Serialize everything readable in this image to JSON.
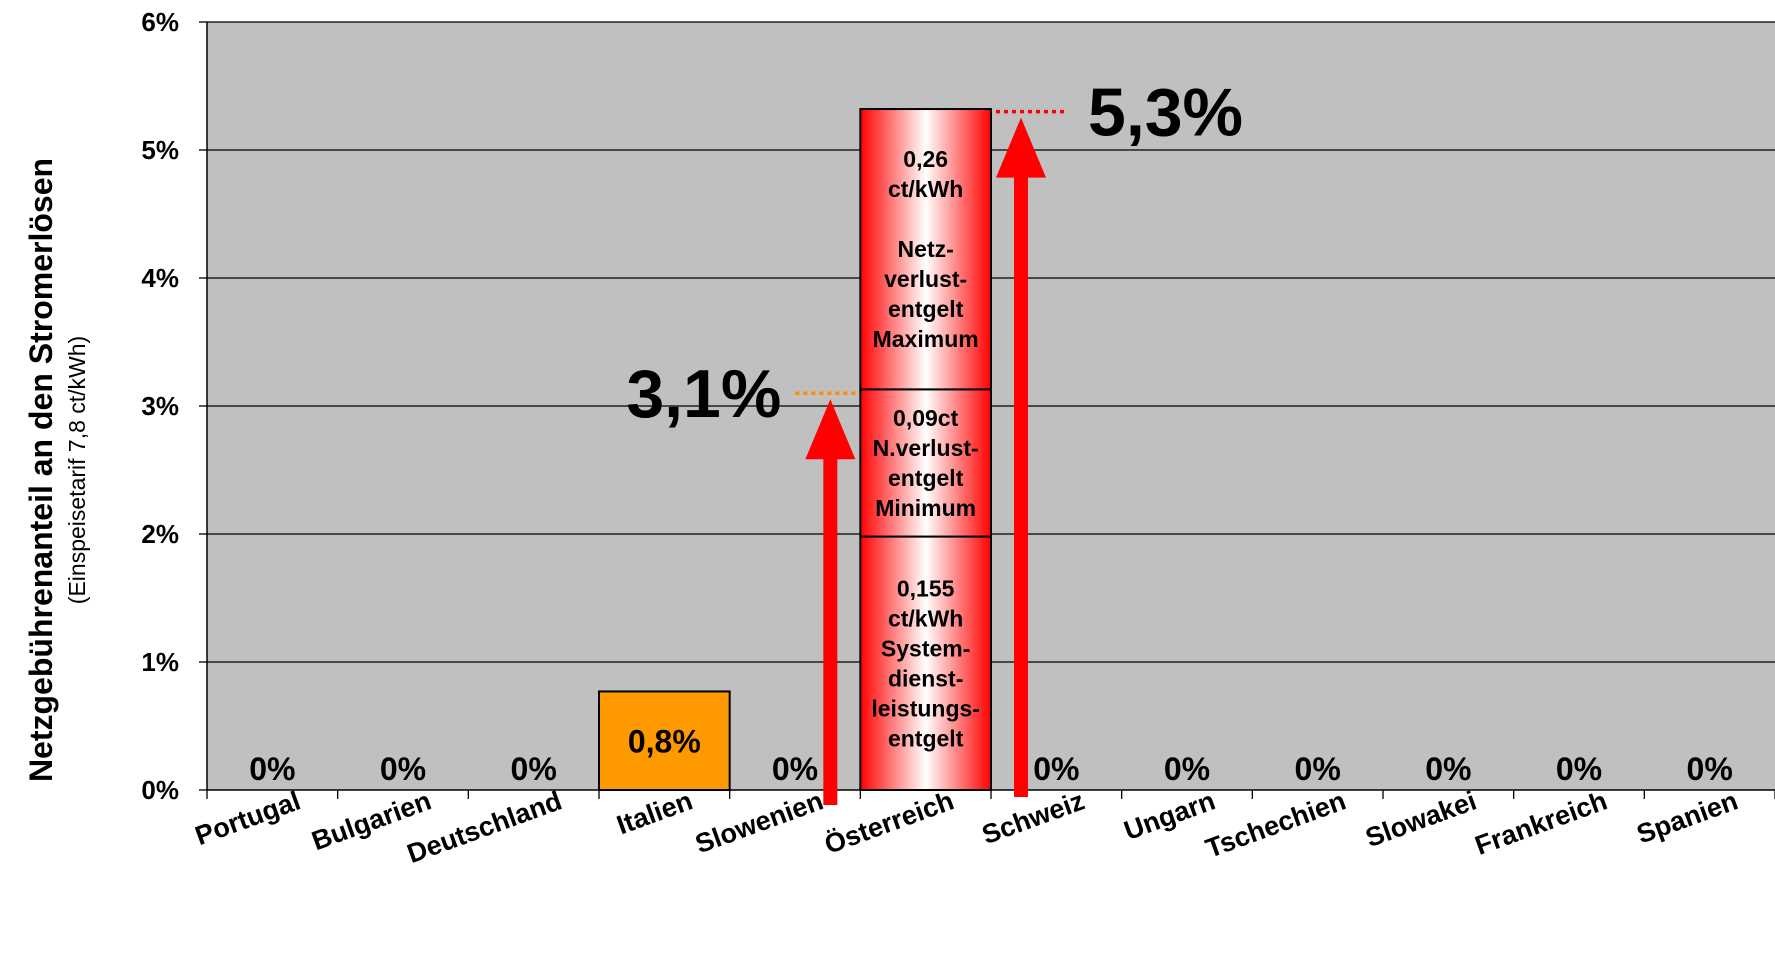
{
  "chart_data": {
    "type": "bar",
    "ylabel": "Netzgebührenanteil an den Stromerlösen",
    "ylabel_sub": "(Einspeisetarif 7,8 ct/kWh)",
    "ylim": [
      0,
      6
    ],
    "yticks": [
      {
        "v": 0,
        "label": "0%"
      },
      {
        "v": 1,
        "label": "1%"
      },
      {
        "v": 2,
        "label": "2%"
      },
      {
        "v": 3,
        "label": "3%"
      },
      {
        "v": 4,
        "label": "4%"
      },
      {
        "v": 5,
        "label": "5%"
      },
      {
        "v": 6,
        "label": "6%"
      }
    ],
    "grid": true,
    "plot_background": "#c0c0c0",
    "categories": [
      "Portugal",
      "Bulgarien",
      "Deutschland",
      "Italien",
      "Slowenien",
      "Österreich",
      "Schweiz",
      "Ungarn",
      "Tschechien",
      "Slowakei",
      "Frankreich",
      "Spanien"
    ],
    "values": [
      0,
      0,
      0,
      0.77,
      0,
      5.32,
      0,
      0,
      0,
      0,
      0,
      0
    ],
    "data_labels": [
      "0%",
      "0%",
      "0%",
      "0,8%",
      "0%",
      "",
      "0%",
      "0%",
      "0%",
      "0%",
      "0%",
      "0%"
    ],
    "bar_color_italien": "#ff9900",
    "stacked_osterreich": [
      {
        "from": 0,
        "to": 1.98,
        "lines": [
          "0,155",
          "ct/kWh",
          "System-",
          "dienst-",
          "leistungs-",
          "entgelt"
        ]
      },
      {
        "from": 1.98,
        "to": 3.13,
        "lines": [
          "0,09ct",
          "N.verlust-",
          "entgelt",
          "Minimum"
        ]
      },
      {
        "from": 3.13,
        "to": 5.32,
        "lines": [
          "0,26",
          "ct/kWh",
          "",
          "Netz-",
          "verlust-",
          "entgelt",
          "Maximum"
        ]
      }
    ],
    "annotations": [
      {
        "label": "3,1%",
        "value": 3.1,
        "arrow_color": "#ff0000",
        "dot_color": "#ff8c00"
      },
      {
        "label": "5,3%",
        "value": 5.3,
        "arrow_color": "#ff0000",
        "dot_color": "#ff0000"
      }
    ]
  }
}
